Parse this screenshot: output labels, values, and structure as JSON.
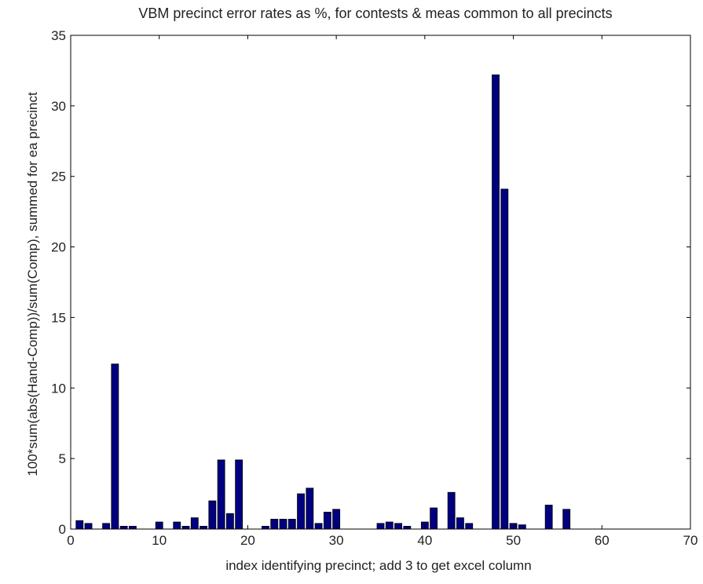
{
  "chart_data": {
    "type": "bar",
    "title": "VBM precinct error rates as %, for contests & meas common to all precincts",
    "xlabel": "index identifying precinct; add 3 to get excel column",
    "ylabel": "100*sum(abs(Hand-Comp))/sum(Comp), summed for ea precinct",
    "xlim": [
      0,
      70
    ],
    "ylim": [
      0,
      35
    ],
    "xticks": [
      0,
      10,
      20,
      30,
      40,
      50,
      60,
      70
    ],
    "yticks": [
      0,
      5,
      10,
      15,
      20,
      25,
      30,
      35
    ],
    "grid": false,
    "bar_color": "#000080",
    "x": [
      1,
      2,
      3,
      4,
      5,
      6,
      7,
      8,
      9,
      10,
      11,
      12,
      13,
      14,
      15,
      16,
      17,
      18,
      19,
      20,
      21,
      22,
      23,
      24,
      25,
      26,
      27,
      28,
      29,
      30,
      31,
      32,
      33,
      34,
      35,
      36,
      37,
      38,
      39,
      40,
      41,
      42,
      43,
      44,
      45,
      46,
      47,
      48,
      49,
      50,
      51,
      52,
      53,
      54,
      55,
      56,
      57,
      58,
      59,
      60,
      61,
      62,
      63,
      64,
      65,
      66,
      67,
      68,
      69
    ],
    "values": [
      0.6,
      0.4,
      0,
      0.4,
      11.7,
      0.2,
      0.2,
      0,
      0,
      0.5,
      0,
      0.5,
      0.2,
      0.8,
      0.2,
      2.0,
      4.9,
      1.1,
      4.9,
      0,
      0,
      0.2,
      0.7,
      0.7,
      0.7,
      2.5,
      2.9,
      0.4,
      1.2,
      1.4,
      0,
      0,
      0,
      0,
      0.4,
      0.5,
      0.4,
      0.2,
      0,
      0.5,
      1.5,
      0,
      2.6,
      0.8,
      0.4,
      0,
      0,
      32.2,
      24.1,
      0.4,
      0.3,
      0,
      0,
      1.7,
      0,
      1.4,
      0,
      0,
      0,
      0,
      0,
      0,
      0,
      0,
      0,
      0,
      0,
      0,
      0
    ]
  }
}
